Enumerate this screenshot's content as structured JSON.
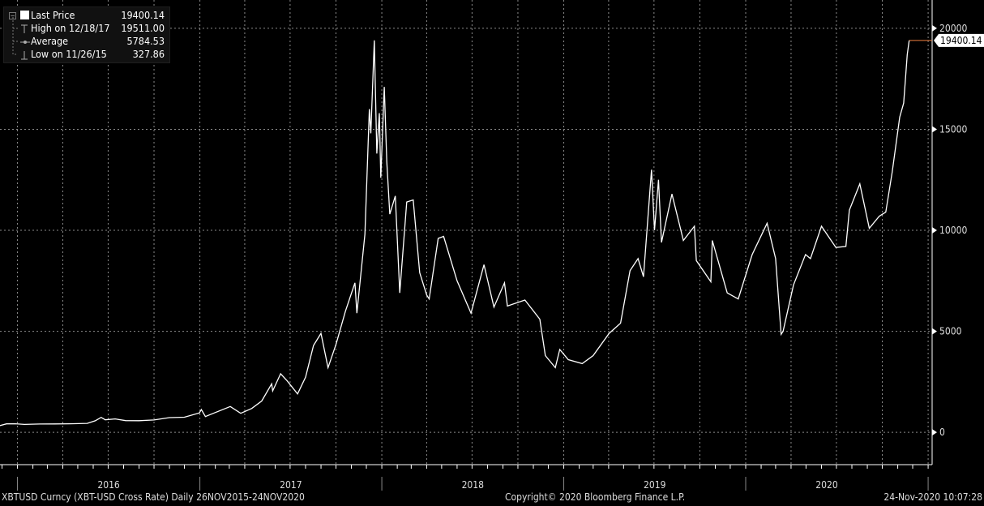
{
  "chart_data": {
    "type": "line",
    "xlim": [
      "2015-11-27",
      "2021-01-09"
    ],
    "ylim": [
      -1600,
      21400
    ],
    "yticks": [
      0,
      5000,
      10000,
      15000,
      20000
    ],
    "ytick_labels": [
      "0",
      "5000",
      "10000",
      "15000",
      "20000"
    ],
    "xtick_labels": [
      "2016",
      "2017",
      "2018",
      "2019",
      "2020"
    ],
    "grid": true,
    "line_color": "#ffffff",
    "last_price_color": "#f08040",
    "legend_position": "top-left",
    "legend": [
      {
        "label": "Last Price",
        "value": "19400.14"
      },
      {
        "label": "High on 12/18/17",
        "value": "19511.00"
      },
      {
        "label": "Average",
        "value": "5784.53"
      },
      {
        "label": "Low on 11/26/15",
        "value": "327.86"
      }
    ],
    "last_price_label": "19400.14",
    "series": [
      {
        "points": [
          [
            "2015-11-26",
            328
          ],
          [
            "2015-12-10",
            420
          ],
          [
            "2015-12-28",
            425
          ],
          [
            "2016-01-15",
            390
          ],
          [
            "2016-02-15",
            410
          ],
          [
            "2016-03-15",
            415
          ],
          [
            "2016-04-15",
            425
          ],
          [
            "2016-05-20",
            445
          ],
          [
            "2016-06-05",
            570
          ],
          [
            "2016-06-17",
            740
          ],
          [
            "2016-06-25",
            620
          ],
          [
            "2016-07-15",
            665
          ],
          [
            "2016-08-05",
            580
          ],
          [
            "2016-09-01",
            575
          ],
          [
            "2016-10-01",
            610
          ],
          [
            "2016-11-01",
            730
          ],
          [
            "2016-12-01",
            750
          ],
          [
            "2016-12-31",
            960
          ],
          [
            "2017-01-04",
            1130
          ],
          [
            "2017-01-12",
            780
          ],
          [
            "2017-02-01",
            980
          ],
          [
            "2017-03-03",
            1280
          ],
          [
            "2017-03-24",
            940
          ],
          [
            "2017-04-15",
            1180
          ],
          [
            "2017-05-05",
            1550
          ],
          [
            "2017-05-25",
            2400
          ],
          [
            "2017-05-27",
            2050
          ],
          [
            "2017-06-12",
            2900
          ],
          [
            "2017-06-25",
            2550
          ],
          [
            "2017-07-16",
            1900
          ],
          [
            "2017-08-01",
            2730
          ],
          [
            "2017-08-17",
            4300
          ],
          [
            "2017-09-01",
            4900
          ],
          [
            "2017-09-15",
            3200
          ],
          [
            "2017-10-01",
            4350
          ],
          [
            "2017-10-20",
            6000
          ],
          [
            "2017-11-08",
            7400
          ],
          [
            "2017-11-12",
            5900
          ],
          [
            "2017-11-28",
            9800
          ],
          [
            "2017-12-07",
            16000
          ],
          [
            "2017-12-10",
            14800
          ],
          [
            "2017-12-17",
            19400
          ],
          [
            "2017-12-22",
            13800
          ],
          [
            "2017-12-27",
            15800
          ],
          [
            "2017-12-30",
            12600
          ],
          [
            "2018-01-06",
            17100
          ],
          [
            "2018-01-11",
            13400
          ],
          [
            "2018-01-17",
            10800
          ],
          [
            "2018-01-28",
            11700
          ],
          [
            "2018-02-06",
            6900
          ],
          [
            "2018-02-20",
            11400
          ],
          [
            "2018-03-05",
            11500
          ],
          [
            "2018-03-18",
            7900
          ],
          [
            "2018-04-01",
            6800
          ],
          [
            "2018-04-06",
            6600
          ],
          [
            "2018-04-24",
            9600
          ],
          [
            "2018-05-05",
            9700
          ],
          [
            "2018-06-01",
            7500
          ],
          [
            "2018-06-29",
            5900
          ],
          [
            "2018-07-25",
            8300
          ],
          [
            "2018-08-14",
            6200
          ],
          [
            "2018-09-04",
            7400
          ],
          [
            "2018-09-10",
            6250
          ],
          [
            "2018-10-15",
            6550
          ],
          [
            "2018-11-14",
            5600
          ],
          [
            "2018-11-25",
            3800
          ],
          [
            "2018-12-15",
            3200
          ],
          [
            "2018-12-24",
            4100
          ],
          [
            "2019-01-10",
            3600
          ],
          [
            "2019-02-07",
            3400
          ],
          [
            "2019-03-01",
            3800
          ],
          [
            "2019-04-02",
            4900
          ],
          [
            "2019-04-25",
            5400
          ],
          [
            "2019-05-14",
            8000
          ],
          [
            "2019-05-30",
            8600
          ],
          [
            "2019-06-10",
            7700
          ],
          [
            "2019-06-26",
            13000
          ],
          [
            "2019-07-02",
            10000
          ],
          [
            "2019-07-10",
            12500
          ],
          [
            "2019-07-16",
            9400
          ],
          [
            "2019-08-06",
            11800
          ],
          [
            "2019-08-29",
            9500
          ],
          [
            "2019-09-20",
            10200
          ],
          [
            "2019-09-24",
            8500
          ],
          [
            "2019-10-23",
            7450
          ],
          [
            "2019-10-26",
            9500
          ],
          [
            "2019-11-25",
            6900
          ],
          [
            "2019-12-17",
            6600
          ],
          [
            "2020-01-14",
            8800
          ],
          [
            "2020-02-13",
            10350
          ],
          [
            "2020-03-01",
            8600
          ],
          [
            "2020-03-12",
            4850
          ],
          [
            "2020-03-16",
            5000
          ],
          [
            "2020-04-06",
            7300
          ],
          [
            "2020-04-30",
            8800
          ],
          [
            "2020-05-10",
            8600
          ],
          [
            "2020-06-01",
            10200
          ],
          [
            "2020-06-30",
            9150
          ],
          [
            "2020-07-20",
            9200
          ],
          [
            "2020-07-27",
            11000
          ],
          [
            "2020-08-17",
            12300
          ],
          [
            "2020-09-05",
            10100
          ],
          [
            "2020-09-25",
            10700
          ],
          [
            "2020-10-08",
            10900
          ],
          [
            "2020-10-21",
            12900
          ],
          [
            "2020-11-05",
            15600
          ],
          [
            "2020-11-13",
            16300
          ],
          [
            "2020-11-20",
            18700
          ],
          [
            "2020-11-24",
            19400
          ]
        ]
      }
    ]
  },
  "footer": {
    "ticker": "XBTUSD Curncy (XBT-USD Cross Rate)  Daily 26NOV2015-24NOV2020",
    "copyright": "Copyright© 2020 Bloomberg Finance L.P.",
    "timestamp": "24-Nov-2020 10:07:28"
  }
}
